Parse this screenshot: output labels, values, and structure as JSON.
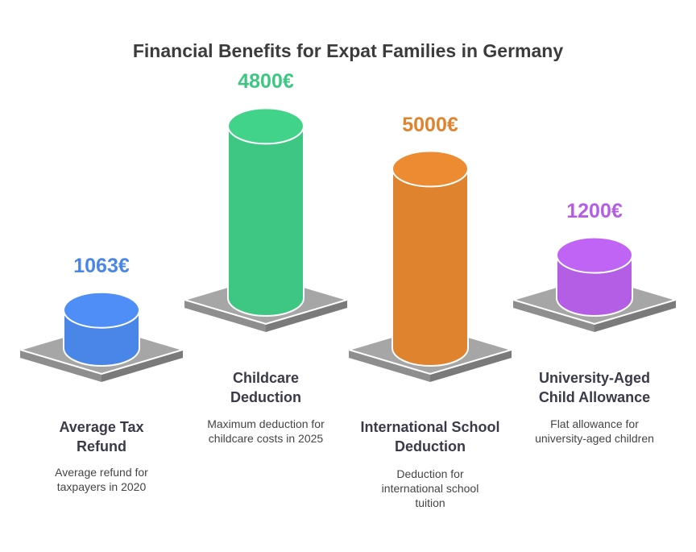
{
  "chart_data": {
    "type": "bar",
    "title": "Financial Benefits for Expat Families in Germany",
    "categories": [
      "Average Tax Refund",
      "Childcare Deduction",
      "International School Deduction",
      "University-Aged Child Allowance"
    ],
    "values": [
      1063,
      4800,
      5000,
      1200
    ],
    "value_labels": [
      "1063€",
      "4800€",
      "5000€",
      "1200€"
    ],
    "descriptions": [
      "Average refund for taxpayers in 2020",
      "Maximum deduction for childcare costs in 2025",
      "Deduction for international school tuition",
      "Flat allowance for university-aged children"
    ],
    "colors": [
      "#4a86e8",
      "#3ec783",
      "#e0832f",
      "#b45ee6"
    ],
    "label_colors": [
      "#4a86e8",
      "#3ec783",
      "#e0832f",
      "#b45ee6"
    ]
  }
}
